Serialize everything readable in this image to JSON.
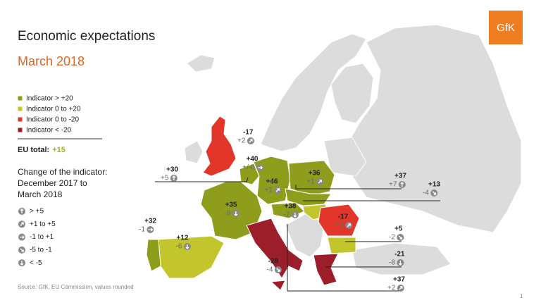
{
  "header": {
    "title": "Economic expectations",
    "subtitle": "March 2018",
    "logo": "GfK"
  },
  "legend": {
    "items": [
      "Indicator > +20",
      "Indicator 0 to +20",
      "Indicator 0 to -20",
      "Indicator < -20"
    ]
  },
  "eu_total": {
    "label": "EU total:",
    "value": "+15"
  },
  "change": {
    "title": [
      "Change of the indicator:",
      "December 2017 to",
      "March 2018"
    ],
    "items": [
      "> +5",
      "+1 to +5",
      "-1 to +1",
      "-5 to -1",
      "< -5"
    ]
  },
  "countries": [
    {
      "indicator": "-17",
      "change": "+2"
    },
    {
      "indicator": "+40",
      "change": "+/-0"
    },
    {
      "indicator": "+30",
      "change": "+5"
    },
    {
      "indicator": "+46",
      "change": "+1"
    },
    {
      "indicator": "+36",
      "change": "+1"
    },
    {
      "indicator": "+37",
      "change": "+7"
    },
    {
      "indicator": "+13",
      "change": "-4"
    },
    {
      "indicator": "+35",
      "change": "-9"
    },
    {
      "indicator": "+38",
      "change": "-7"
    },
    {
      "indicator": "-17",
      "change": "+3"
    },
    {
      "indicator": "+32",
      "change": "-1"
    },
    {
      "indicator": "+12",
      "change": "-6"
    },
    {
      "indicator": "+5",
      "change": "-2"
    },
    {
      "indicator": "-28",
      "change": "-4"
    },
    {
      "indicator": "-21",
      "change": "-8"
    },
    {
      "indicator": "+37",
      "change": "+2"
    }
  ],
  "source": "Source: GfK, EU Commission, values rounded",
  "page": "1"
}
